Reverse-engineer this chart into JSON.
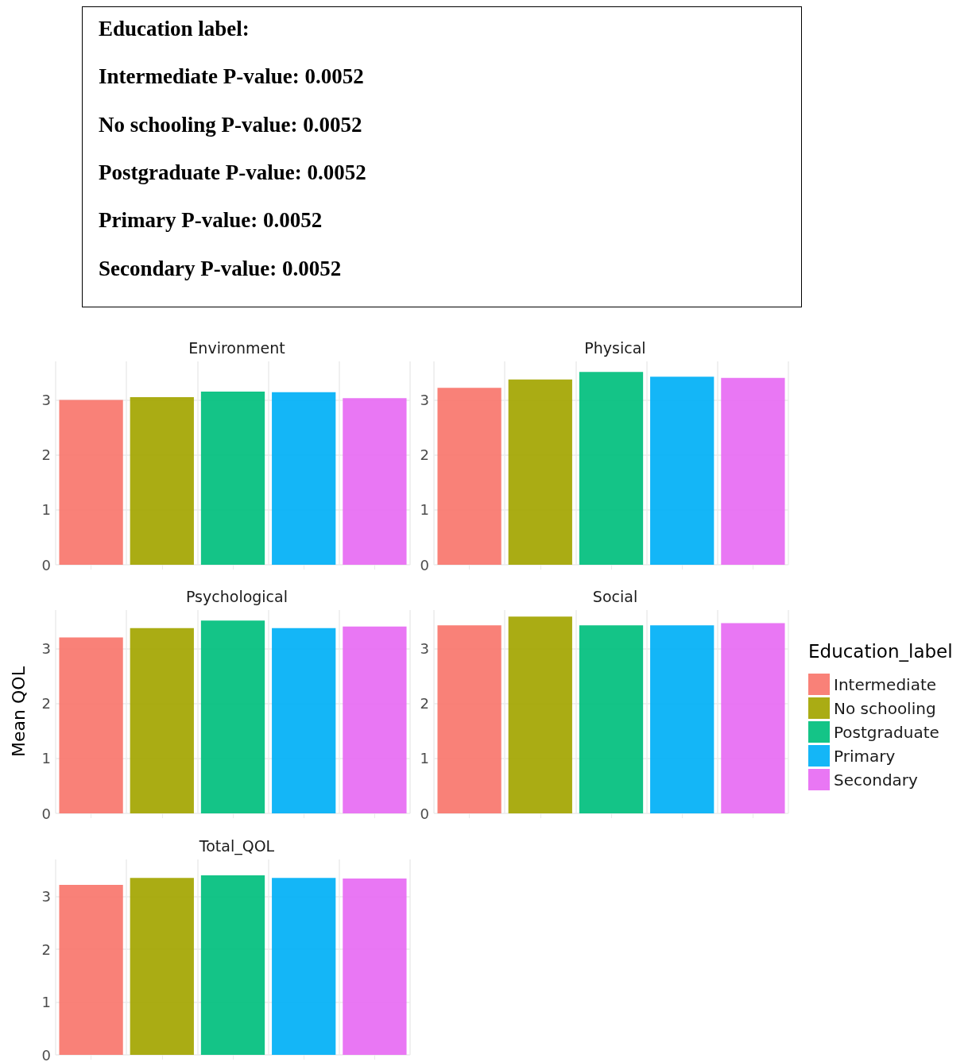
{
  "chart_data": [
    {
      "type": "other",
      "title": "Education label:",
      "annotations": [
        "Intermediate P-value: 0.0052",
        "No schooling P-value: 0.0052",
        "Postgraduate P-value: 0.0052",
        "Primary P-value: 0.0052",
        "Secondary P-value: 0.0052"
      ]
    },
    {
      "type": "bar",
      "title": "Environment",
      "categories": [
        null,
        null,
        null,
        null,
        null
      ],
      "stacked": true,
      "ylim": [
        0,
        3.7
      ],
      "yticks": [
        0,
        1,
        2,
        3
      ],
      "grid": true,
      "tick_labels": "y",
      "series": [
        {
          "color": "#f8766d",
          "values": [
            3.0,
            null,
            null,
            null,
            null
          ]
        },
        {
          "color": "#a3a500",
          "values": [
            null,
            3.05,
            null,
            null,
            null
          ]
        },
        {
          "color": "#00bf7d",
          "values": [
            null,
            null,
            3.15,
            null,
            null
          ]
        },
        {
          "color": "#00b0f6",
          "values": [
            null,
            null,
            null,
            3.14,
            null
          ]
        },
        {
          "color": "#e76bf3",
          "values": [
            null,
            null,
            null,
            null,
            3.03
          ]
        }
      ]
    },
    {
      "type": "bar",
      "title": "Physical",
      "categories": [
        null,
        null,
        null,
        null,
        null
      ],
      "stacked": true,
      "ylim": [
        0,
        3.7
      ],
      "yticks": [
        0,
        1,
        2,
        3
      ],
      "grid": true,
      "series": [
        {
          "color": "#f8766d",
          "values": [
            3.22,
            null,
            null,
            null,
            null
          ]
        },
        {
          "color": "#a3a500",
          "values": [
            null,
            3.37,
            null,
            null,
            null
          ]
        },
        {
          "color": "#00bf7d",
          "values": [
            null,
            null,
            3.51,
            null,
            null
          ]
        },
        {
          "color": "#00b0f6",
          "values": [
            null,
            null,
            null,
            3.42,
            null
          ]
        },
        {
          "color": "#e76bf3",
          "values": [
            null,
            null,
            null,
            null,
            3.4
          ]
        }
      ]
    },
    {
      "type": "bar",
      "title": "Psychological",
      "ylabel": "Mean QOL",
      "categories": [
        null,
        null,
        null,
        null,
        null
      ],
      "stacked": true,
      "ylim": [
        0,
        3.7
      ],
      "yticks": [
        0,
        1,
        2,
        3
      ],
      "grid": true,
      "tick_labels": "y",
      "series": [
        {
          "color": "#f8766d",
          "values": [
            3.2,
            null,
            null,
            null,
            null
          ]
        },
        {
          "color": "#a3a500",
          "values": [
            null,
            3.37,
            null,
            null,
            null
          ]
        },
        {
          "color": "#00bf7d",
          "values": [
            null,
            null,
            3.51,
            null,
            null
          ]
        },
        {
          "color": "#00b0f6",
          "values": [
            null,
            null,
            null,
            3.37,
            null
          ]
        },
        {
          "color": "#e76bf3",
          "values": [
            null,
            null,
            null,
            null,
            3.4
          ]
        }
      ]
    },
    {
      "type": "bar",
      "title": "Social",
      "legend_title": "Education_label",
      "legend": "right",
      "categories": [
        null,
        null,
        null,
        null,
        null
      ],
      "stacked": true,
      "ylim": [
        0,
        3.7
      ],
      "yticks": [
        0,
        1,
        2,
        3
      ],
      "grid": true,
      "series": [
        {
          "name": "Intermediate",
          "color": "#f8766d",
          "values": [
            3.42,
            null,
            null,
            null,
            null
          ]
        },
        {
          "name": "No schooling",
          "color": "#a3a500",
          "values": [
            null,
            3.58,
            null,
            null,
            null
          ]
        },
        {
          "name": "Postgraduate",
          "color": "#00bf7d",
          "values": [
            null,
            null,
            3.42,
            null,
            null
          ]
        },
        {
          "name": "Primary",
          "color": "#00b0f6",
          "values": [
            null,
            null,
            null,
            3.42,
            null
          ]
        },
        {
          "name": "Secondary",
          "color": "#e76bf3",
          "values": [
            null,
            null,
            null,
            null,
            3.46
          ]
        }
      ]
    },
    {
      "type": "bar",
      "title": "Total_QOL",
      "categories": [
        null,
        null,
        null,
        null,
        null
      ],
      "stacked": true,
      "ylim": [
        0,
        3.7
      ],
      "yticks": [
        0,
        1,
        2,
        3
      ],
      "grid": true,
      "tick_labels": "y",
      "series": [
        {
          "color": "#f8766d",
          "values": [
            3.22,
            null,
            null,
            null,
            null
          ]
        },
        {
          "color": "#a3a500",
          "values": [
            null,
            3.35,
            null,
            null,
            null
          ]
        },
        {
          "color": "#00bf7d",
          "values": [
            null,
            null,
            3.4,
            null,
            null
          ]
        },
        {
          "color": "#00b0f6",
          "values": [
            null,
            null,
            null,
            3.35,
            null
          ]
        },
        {
          "color": "#e76bf3",
          "values": [
            null,
            null,
            null,
            null,
            3.34
          ]
        }
      ]
    }
  ]
}
